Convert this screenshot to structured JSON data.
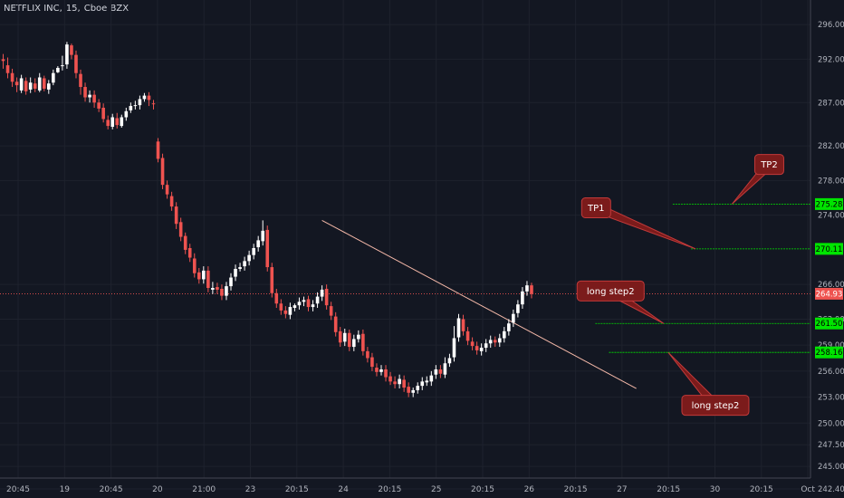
{
  "header": {
    "symbol": "NETFLIX INC",
    "interval": "15",
    "exchange": "Cboe BZX"
  },
  "colors": {
    "background": "#131722",
    "grid": "#1e222d",
    "axis_text": "#b2b5be",
    "up": "#ffffff",
    "down": "#ef5350",
    "level": "#00e400",
    "current_price": "#ef5350",
    "trendline": "#f4b8a8",
    "callout_fill": "#7b1b1b",
    "callout_stroke": "#c23a3a"
  },
  "chart_data": {
    "type": "candlestick",
    "y_range": [
      242.4,
      298.0
    ],
    "y_ticks": [
      "296.00",
      "292.00",
      "287.00",
      "282.00",
      "278.00",
      "274.00",
      "266.00",
      "262.00",
      "259.00",
      "256.00",
      "253.00",
      "250.00",
      "247.50",
      "245.00",
      "242.40"
    ],
    "x_ticks": [
      "20:45",
      "19",
      "20:45",
      "20",
      "21:00",
      "23",
      "20:15",
      "24",
      "20:15",
      "25",
      "20:15",
      "26",
      "20:15",
      "27",
      "20:15",
      "30",
      "20:15",
      "Oct"
    ],
    "current_price": {
      "value": 264.93,
      "label": "264.93"
    },
    "levels": [
      {
        "value": 275.28,
        "label": "275.28"
      },
      {
        "value": 270.11,
        "label": "270.11"
      },
      {
        "value": 261.5,
        "label": "261.50"
      },
      {
        "value": 258.16,
        "label": "258.16"
      }
    ],
    "annotations": [
      {
        "text": "TP2",
        "anchor_price": 275.28,
        "anchor_index": 160,
        "box_index": 165,
        "box_price": 281.0
      },
      {
        "text": "TP1",
        "anchor_price": 270.11,
        "anchor_index": 152,
        "box_index": 127,
        "box_price": 276.0
      },
      {
        "text": "long step2",
        "anchor_price": 261.5,
        "anchor_index": 145,
        "box_index": 126,
        "box_price": 266.4
      },
      {
        "text": "long step2",
        "anchor_price": 258.16,
        "anchor_index": 146,
        "box_index": 149,
        "box_price": 253.2
      }
    ],
    "trendline": {
      "from": {
        "index": 70,
        "price": 273.4
      },
      "to": {
        "index": 139,
        "price": 254.0
      }
    },
    "candles": [
      [
        292.0,
        291.8,
        292.6,
        290.9
      ],
      [
        291.3,
        290.4,
        292.2,
        289.8
      ],
      [
        290.4,
        289.4,
        290.9,
        288.8
      ],
      [
        289.4,
        289.0,
        289.9,
        288.2
      ],
      [
        288.4,
        289.8,
        290.2,
        288.1
      ],
      [
        289.5,
        288.3,
        289.9,
        287.9
      ],
      [
        288.5,
        289.3,
        289.9,
        288.1
      ],
      [
        289.2,
        288.6,
        289.8,
        288.2
      ],
      [
        288.4,
        289.9,
        290.4,
        288.2
      ],
      [
        289.8,
        288.6,
        290.1,
        288.3
      ],
      [
        288.5,
        289.2,
        289.6,
        288.0
      ],
      [
        289.3,
        290.4,
        290.8,
        289.0
      ],
      [
        290.5,
        291.0,
        291.2,
        290.4
      ],
      [
        291.2,
        291.3,
        292.4,
        290.7
      ],
      [
        291.4,
        293.7,
        294.0,
        290.9
      ],
      [
        293.6,
        292.5,
        293.8,
        292.0
      ],
      [
        292.5,
        290.4,
        293.0,
        289.8
      ],
      [
        290.3,
        288.8,
        290.8,
        287.9
      ],
      [
        288.8,
        287.6,
        289.3,
        287.1
      ],
      [
        287.6,
        287.9,
        288.4,
        287.0
      ],
      [
        287.9,
        287.0,
        288.4,
        286.4
      ],
      [
        287.0,
        286.3,
        287.4,
        285.9
      ],
      [
        286.4,
        285.1,
        286.9,
        284.7
      ],
      [
        285.0,
        284.3,
        285.5,
        283.9
      ],
      [
        284.2,
        285.3,
        285.7,
        283.9
      ],
      [
        285.2,
        284.4,
        285.8,
        284.0
      ],
      [
        284.3,
        285.3,
        285.6,
        284.1
      ],
      [
        285.3,
        286.0,
        286.4,
        284.9
      ],
      [
        286.1,
        286.6,
        287.0,
        285.8
      ],
      [
        286.6,
        286.7,
        287.2,
        286.2
      ],
      [
        286.7,
        287.4,
        287.8,
        286.2
      ],
      [
        287.4,
        287.8,
        288.1,
        287.1
      ],
      [
        287.8,
        287.3,
        288.2,
        286.6
      ],
      [
        286.9,
        286.8,
        287.3,
        286.2
      ],
      [
        282.5,
        280.5,
        282.9,
        280.1
      ],
      [
        280.6,
        277.5,
        281.1,
        277.0
      ],
      [
        277.5,
        276.4,
        278.0,
        275.9
      ],
      [
        276.2,
        275.0,
        276.7,
        274.5
      ],
      [
        275.0,
        273.0,
        275.5,
        272.4
      ],
      [
        273.2,
        271.5,
        273.7,
        271.0
      ],
      [
        271.6,
        270.0,
        272.0,
        269.5
      ],
      [
        270.2,
        269.1,
        270.7,
        268.6
      ],
      [
        269.0,
        267.3,
        269.6,
        266.8
      ],
      [
        267.4,
        266.6,
        267.9,
        266.1
      ],
      [
        266.6,
        267.6,
        268.1,
        266.1
      ],
      [
        267.6,
        265.6,
        268.1,
        265.1
      ],
      [
        265.4,
        265.6,
        266.3,
        264.9
      ],
      [
        265.7,
        265.4,
        266.2,
        264.9
      ],
      [
        265.5,
        264.7,
        266.0,
        264.2
      ],
      [
        264.7,
        265.8,
        266.3,
        264.2
      ],
      [
        265.8,
        266.8,
        267.3,
        265.3
      ],
      [
        266.9,
        267.8,
        268.3,
        266.4
      ],
      [
        267.8,
        268.0,
        268.5,
        267.5
      ],
      [
        268.1,
        268.7,
        269.2,
        267.6
      ],
      [
        268.7,
        269.4,
        269.9,
        268.2
      ],
      [
        269.4,
        270.2,
        270.7,
        268.9
      ],
      [
        270.3,
        271.1,
        271.6,
        269.8
      ],
      [
        271.0,
        272.2,
        273.4,
        270.5
      ],
      [
        272.3,
        268.0,
        272.8,
        267.5
      ],
      [
        268.0,
        265.0,
        268.5,
        264.5
      ],
      [
        265.0,
        263.8,
        265.5,
        263.3
      ],
      [
        263.8,
        263.0,
        264.3,
        262.5
      ],
      [
        263.0,
        262.6,
        263.5,
        262.1
      ],
      [
        262.5,
        263.4,
        263.9,
        262.0
      ],
      [
        263.3,
        263.6,
        263.8,
        262.9
      ],
      [
        263.6,
        264.0,
        264.5,
        263.1
      ],
      [
        264.0,
        264.2,
        264.6,
        263.5
      ],
      [
        264.3,
        263.4,
        264.7,
        262.9
      ],
      [
        263.4,
        263.7,
        264.2,
        262.9
      ],
      [
        263.8,
        264.6,
        265.1,
        263.3
      ],
      [
        264.6,
        265.4,
        265.9,
        264.1
      ],
      [
        265.5,
        263.6,
        266.0,
        263.1
      ],
      [
        263.5,
        262.4,
        264.0,
        261.9
      ],
      [
        262.3,
        260.5,
        262.8,
        260.0
      ],
      [
        260.6,
        259.3,
        261.1,
        258.8
      ],
      [
        259.4,
        260.4,
        260.9,
        258.9
      ],
      [
        260.4,
        258.8,
        260.8,
        258.3
      ],
      [
        258.8,
        259.7,
        260.2,
        258.3
      ],
      [
        259.7,
        260.2,
        260.7,
        259.3
      ],
      [
        260.3,
        258.3,
        260.8,
        257.8
      ],
      [
        258.3,
        257.5,
        258.8,
        257.0
      ],
      [
        257.6,
        256.5,
        258.1,
        256.0
      ],
      [
        256.4,
        255.9,
        256.9,
        255.4
      ],
      [
        255.9,
        256.2,
        256.7,
        255.5
      ],
      [
        256.2,
        255.3,
        256.7,
        254.8
      ],
      [
        255.4,
        254.8,
        255.9,
        254.4
      ],
      [
        254.8,
        254.5,
        255.4,
        254.0
      ],
      [
        254.5,
        255.1,
        255.6,
        254.0
      ],
      [
        255.0,
        254.1,
        255.5,
        253.6
      ],
      [
        254.2,
        253.5,
        254.7,
        253.0
      ],
      [
        253.5,
        253.8,
        254.1,
        253.0
      ],
      [
        253.8,
        254.3,
        254.7,
        253.4
      ],
      [
        254.3,
        254.8,
        255.3,
        253.8
      ],
      [
        254.7,
        254.9,
        255.4,
        254.3
      ],
      [
        254.8,
        255.5,
        256.0,
        254.3
      ],
      [
        255.6,
        256.2,
        256.7,
        255.1
      ],
      [
        256.2,
        255.7,
        256.7,
        255.2
      ],
      [
        255.6,
        256.9,
        257.6,
        255.2
      ],
      [
        256.9,
        257.5,
        258.0,
        256.5
      ],
      [
        257.6,
        259.8,
        261.2,
        257.1
      ],
      [
        259.9,
        262.1,
        262.6,
        259.4
      ],
      [
        262.0,
        260.6,
        262.5,
        260.1
      ],
      [
        260.6,
        259.5,
        261.1,
        259.0
      ],
      [
        259.4,
        258.9,
        259.9,
        258.4
      ],
      [
        258.9,
        258.4,
        259.4,
        257.9
      ],
      [
        258.3,
        258.7,
        259.2,
        257.8
      ],
      [
        258.7,
        259.2,
        259.7,
        258.2
      ],
      [
        259.2,
        259.6,
        260.1,
        258.7
      ],
      [
        259.6,
        259.3,
        260.0,
        258.8
      ],
      [
        259.3,
        259.8,
        260.3,
        258.8
      ],
      [
        259.8,
        260.6,
        261.1,
        259.3
      ],
      [
        260.6,
        261.5,
        262.0,
        260.1
      ],
      [
        261.6,
        262.6,
        263.1,
        261.1
      ],
      [
        262.7,
        263.7,
        264.2,
        262.2
      ],
      [
        263.7,
        265.2,
        265.7,
        263.2
      ],
      [
        265.2,
        265.9,
        266.4,
        264.7
      ],
      [
        265.9,
        264.9,
        266.2,
        264.4
      ]
    ]
  }
}
